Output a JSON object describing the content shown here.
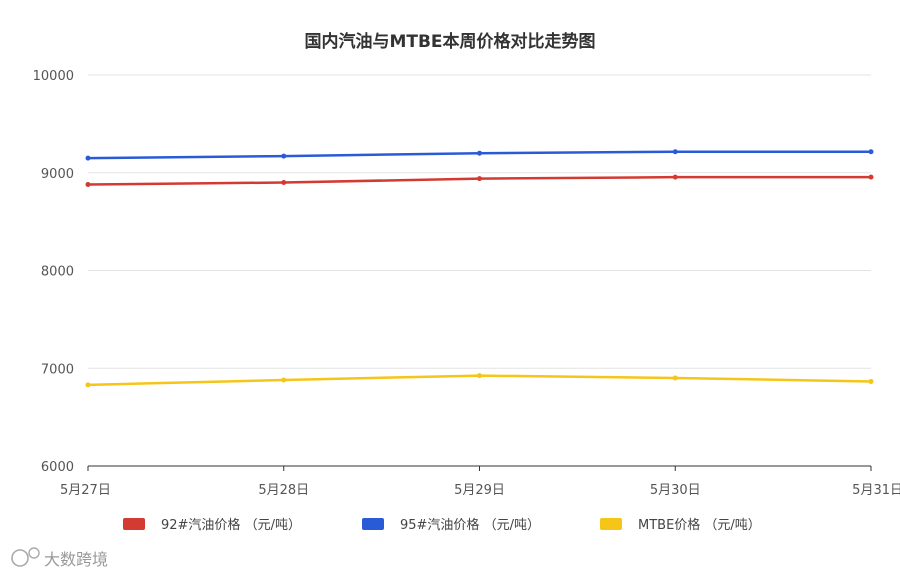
{
  "chart_data": {
    "type": "line",
    "title": "国内汽油与MTBE本周价格对比走势图",
    "categories": [
      "5月27日",
      "5月28日",
      "5月29日",
      "5月30日",
      "5月31日"
    ],
    "ylim": [
      6000,
      10000
    ],
    "yticks": [
      6000,
      7000,
      8000,
      9000,
      10000
    ],
    "grid": true,
    "legend_position": "bottom",
    "series": [
      {
        "name": "92#汽油价格 （元/吨）",
        "color": "#d33a32",
        "values": [
          8880,
          8900,
          8940,
          8955,
          8955
        ]
      },
      {
        "name": "95#汽油价格 （元/吨）",
        "color": "#2a5bd7",
        "values": [
          9150,
          9170,
          9200,
          9215,
          9215
        ]
      },
      {
        "name": "MTBE价格 （元/吨）",
        "color": "#f5c518",
        "values": [
          6830,
          6880,
          6925,
          6900,
          6865
        ]
      }
    ]
  },
  "watermark": {
    "text": "大数跨境",
    "icon": "cat-logo-icon"
  }
}
